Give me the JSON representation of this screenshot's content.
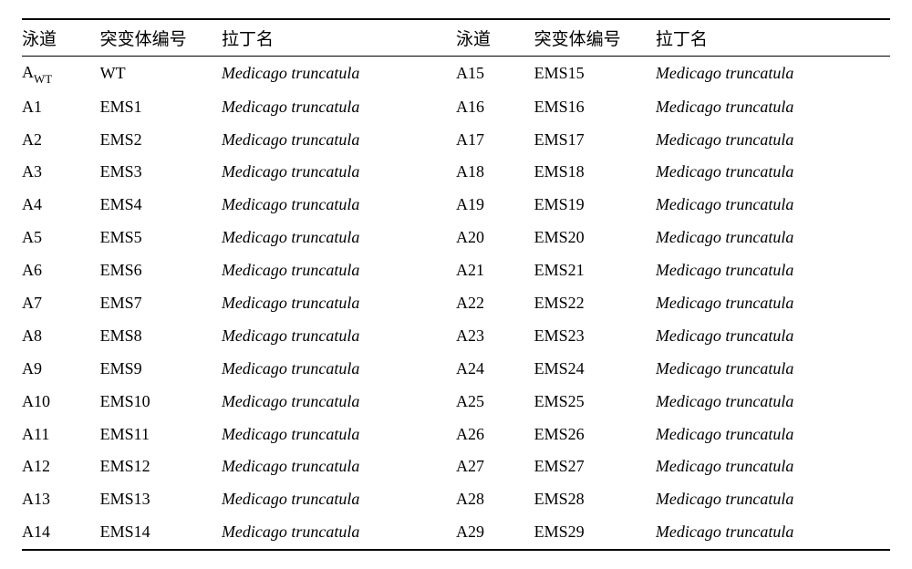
{
  "headers": {
    "lane": "泳道",
    "mutant": "突变体编号",
    "latin": "拉丁名"
  },
  "wt_sub": "WT",
  "species": "Medicago truncatula",
  "left_rows": [
    {
      "lane_prefix": "A",
      "lane_sub": "WT",
      "mutant": "WT"
    },
    {
      "lane": "A1",
      "mutant": "EMS1"
    },
    {
      "lane": "A2",
      "mutant": "EMS2"
    },
    {
      "lane": "A3",
      "mutant": "EMS3"
    },
    {
      "lane": "A4",
      "mutant": "EMS4"
    },
    {
      "lane": "A5",
      "mutant": "EMS5"
    },
    {
      "lane": "A6",
      "mutant": "EMS6"
    },
    {
      "lane": "A7",
      "mutant": "EMS7"
    },
    {
      "lane": "A8",
      "mutant": "EMS8"
    },
    {
      "lane": "A9",
      "mutant": "EMS9"
    },
    {
      "lane": "A10",
      "mutant": "EMS10"
    },
    {
      "lane": "A11",
      "mutant": "EMS11"
    },
    {
      "lane": "A12",
      "mutant": "EMS12"
    },
    {
      "lane": "A13",
      "mutant": "EMS13"
    },
    {
      "lane": "A14",
      "mutant": "EMS14"
    }
  ],
  "right_rows": [
    {
      "lane": "A15",
      "mutant": "EMS15"
    },
    {
      "lane": "A16",
      "mutant": "EMS16"
    },
    {
      "lane": "A17",
      "mutant": "EMS17"
    },
    {
      "lane": "A18",
      "mutant": "EMS18"
    },
    {
      "lane": "A19",
      "mutant": "EMS19"
    },
    {
      "lane": "A20",
      "mutant": "EMS20"
    },
    {
      "lane": "A21",
      "mutant": "EMS21"
    },
    {
      "lane": "A22",
      "mutant": "EMS22"
    },
    {
      "lane": "A23",
      "mutant": "EMS23"
    },
    {
      "lane": "A24",
      "mutant": "EMS24"
    },
    {
      "lane": "A25",
      "mutant": "EMS25"
    },
    {
      "lane": "A26",
      "mutant": "EMS26"
    },
    {
      "lane": "A27",
      "mutant": "EMS27"
    },
    {
      "lane": "A28",
      "mutant": "EMS28"
    },
    {
      "lane": "A29",
      "mutant": "EMS29"
    }
  ],
  "style": {
    "font_size_header_pt": 19,
    "font_size_body_pt": 18,
    "border_color": "#000000",
    "background_color": "#ffffff",
    "text_color": "#000000",
    "col_widths_pct": [
      9,
      14,
      27,
      9,
      14,
      27
    ]
  }
}
